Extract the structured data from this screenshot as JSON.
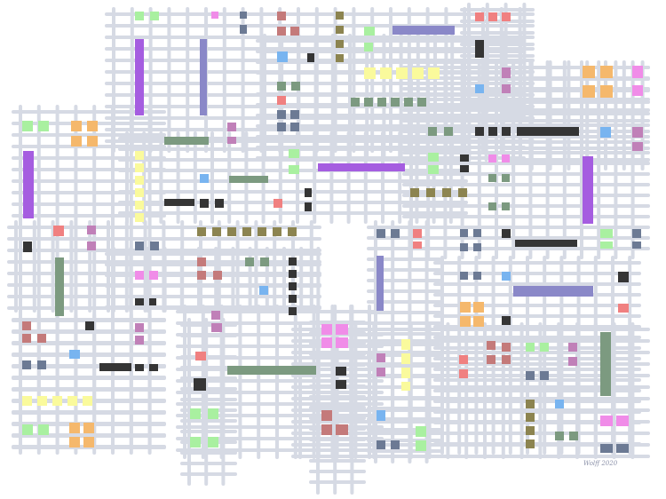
{
  "artwork": {
    "signature": "Wolff 2020",
    "palette": {
      "grid_line": "#d6dae4",
      "purple": "#a55de0",
      "lavender": "#8a88c8",
      "green": "#a9f0a0",
      "orange": "#f5b86c",
      "pink": "#f08ce8",
      "yellow": "#fafa9c",
      "black": "#353535",
      "sage": "#7c9a80",
      "olive": "#8c8450",
      "salmon": "#f08080",
      "blue": "#78b4f0",
      "slate": "#6c7a94",
      "mauve": "#c080b8",
      "rose": "#c47a7a"
    }
  }
}
